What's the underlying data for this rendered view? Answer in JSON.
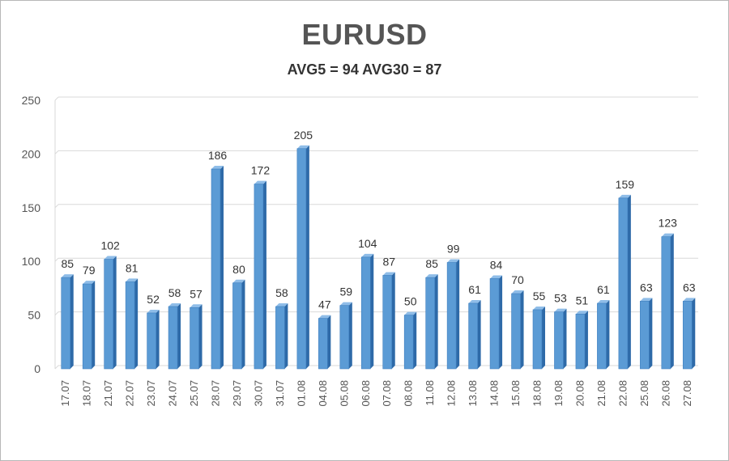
{
  "chart_data": {
    "type": "bar",
    "title": "EURUSD",
    "subtitle": "AVG5 = 94 AVG30 = 87",
    "xlabel": "",
    "ylabel": "",
    "ylim": [
      0,
      250
    ],
    "yticks": [
      0,
      50,
      100,
      150,
      200,
      250
    ],
    "grid": true,
    "legend": "none",
    "categories": [
      "17.07",
      "18.07",
      "21.07",
      "22.07",
      "23.07",
      "24.07",
      "25.07",
      "28.07",
      "29.07",
      "30.07",
      "31.07",
      "01.08",
      "04.08",
      "05.08",
      "06.08",
      "07.08",
      "08.08",
      "11.08",
      "12.08",
      "13.08",
      "14.08",
      "15.08",
      "18.08",
      "19.08",
      "20.08",
      "21.08",
      "22.08",
      "25.08",
      "26.08",
      "27.08"
    ],
    "values": [
      85,
      79,
      102,
      81,
      52,
      58,
      57,
      186,
      80,
      172,
      58,
      205,
      47,
      59,
      104,
      87,
      50,
      85,
      99,
      61,
      84,
      70,
      55,
      53,
      51,
      61,
      159,
      63,
      123,
      63
    ],
    "colors": {
      "bar_front": "#5b9bd5",
      "bar_side": "#2e6aa8",
      "bar_top": "#8fbde8",
      "grid": "#d9d9d9",
      "text": "#555555"
    }
  }
}
